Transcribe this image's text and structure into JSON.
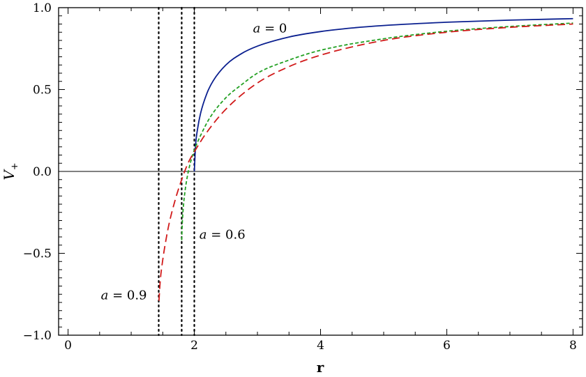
{
  "chart_data": {
    "type": "line",
    "title": "",
    "xlabel": "r",
    "ylabel": "V+",
    "ylabel_main": "V",
    "ylabel_sub": "+",
    "xlim": [
      -0.15,
      8.15
    ],
    "ylim": [
      -1.0,
      1.0
    ],
    "xticks": [
      0,
      2,
      4,
      6,
      8
    ],
    "xtick_labels": [
      "0",
      "2",
      "4",
      "6",
      "8"
    ],
    "yticks": [
      -1.0,
      -0.5,
      0.0,
      0.5,
      1.0
    ],
    "ytick_labels": [
      "−1.0",
      "−0.5",
      "0.0",
      "0.5",
      "1.0"
    ],
    "grid": false,
    "legend": "none",
    "zero_line": true,
    "vertical_lines": [
      {
        "x": 1.436,
        "style": "dotted",
        "color": "#000000"
      },
      {
        "x": 1.8,
        "style": "dotted",
        "color": "#000000"
      },
      {
        "x": 2.0,
        "style": "dotted",
        "color": "#000000"
      }
    ],
    "series": [
      {
        "color": "#0a1f8f",
        "dash": "solid",
        "x": [
          2.0,
          2.02,
          2.05,
          2.1,
          2.2,
          2.3,
          2.5,
          2.75,
          3.0,
          3.5,
          4.0,
          4.5,
          5.0,
          6.0,
          7.0,
          8.0
        ],
        "y": [
          0.0,
          0.16,
          0.256,
          0.356,
          0.477,
          0.554,
          0.65,
          0.72,
          0.765,
          0.821,
          0.854,
          0.876,
          0.891,
          0.911,
          0.924,
          0.933
        ]
      },
      {
        "color": "#22a022",
        "dash": "dashed-short",
        "x": [
          1.8,
          1.81,
          1.83,
          1.86,
          1.9,
          1.95,
          2.0,
          2.1,
          2.25,
          2.5,
          2.75,
          3.0,
          3.5,
          4.0,
          5.0,
          6.0,
          7.0,
          8.0
        ],
        "y": [
          -0.42,
          -0.31,
          -0.2,
          -0.1,
          -0.01,
          0.07,
          0.13,
          0.22,
          0.33,
          0.45,
          0.53,
          0.6,
          0.68,
          0.74,
          0.81,
          0.856,
          0.885,
          0.906
        ]
      },
      {
        "color": "#d11a1a",
        "dash": "dashed-long",
        "x": [
          1.44,
          1.46,
          1.5,
          1.55,
          1.6,
          1.7,
          1.8,
          1.9,
          2.0,
          2.2,
          2.5,
          3.0,
          3.5,
          4.0,
          5.0,
          6.0,
          7.0,
          8.0
        ],
        "y": [
          -0.79,
          -0.67,
          -0.54,
          -0.42,
          -0.32,
          -0.17,
          -0.05,
          0.05,
          0.12,
          0.24,
          0.38,
          0.54,
          0.64,
          0.71,
          0.8,
          0.85,
          0.88,
          0.9
        ]
      }
    ],
    "annotations": [
      {
        "text_italic": "a",
        "text_rest": " = 0",
        "x": 2.93,
        "y": 0.85
      },
      {
        "text_italic": "a",
        "text_rest": " = 0.6",
        "x": 2.08,
        "y": -0.41
      },
      {
        "text_italic": "a",
        "text_rest": " = 0.9",
        "x": 0.52,
        "y": -0.78
      }
    ]
  }
}
